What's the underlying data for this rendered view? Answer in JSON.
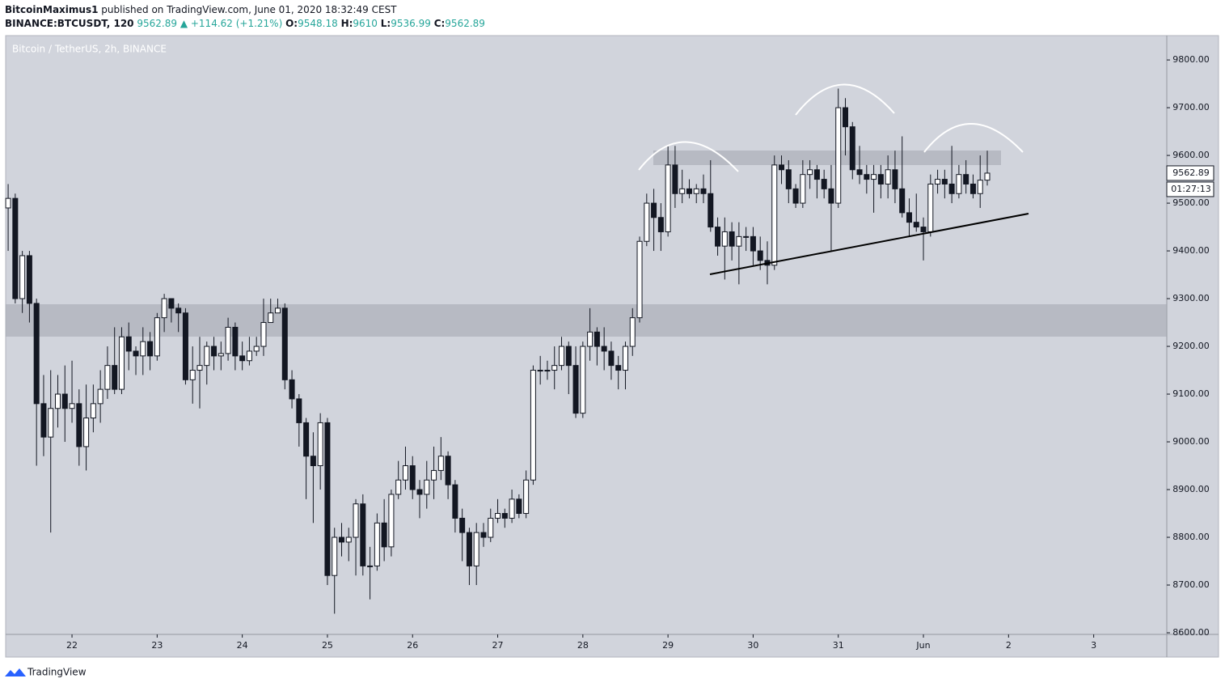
{
  "header": {
    "author": "BitcoinMaximus1",
    "published": "published on TradingView.com, June 01, 2020 18:32:49 CEST",
    "symbol": "BINANCE:BTCUSDT, 120",
    "change": "▲ +114.62 (+1.21%)",
    "o_label": "O:",
    "h_label": "H:",
    "l_label": "L:",
    "c_label": "C:"
  },
  "chart_data": {
    "type": "candlestick",
    "title": "Bitcoin / TetherUS, 2h, BINANCE",
    "countdown": "01:27:13",
    "x": [
      -18,
      -16,
      -14,
      -12,
      -10,
      -8,
      -6,
      -4,
      -2,
      0,
      2,
      4,
      6,
      8,
      10,
      12,
      14,
      16,
      18,
      20,
      22,
      24,
      26,
      28,
      30,
      32,
      34,
      36,
      38,
      40,
      42,
      44,
      46,
      48,
      50,
      52,
      54,
      56,
      58,
      60,
      62,
      64,
      66,
      68,
      70,
      72,
      74,
      76,
      78,
      80,
      82,
      84,
      86,
      88,
      90,
      92,
      94,
      96,
      98,
      100,
      102,
      104,
      106,
      108,
      110,
      112,
      114,
      116,
      118,
      120,
      122,
      124,
      126,
      128,
      130,
      132,
      134,
      136,
      138,
      140,
      142,
      144,
      146,
      148,
      150,
      152,
      154,
      156,
      158,
      160,
      162,
      164,
      166,
      168,
      170,
      172,
      174,
      176,
      178,
      180,
      182,
      184,
      186,
      188,
      190,
      192,
      194,
      196,
      198,
      200,
      202,
      204,
      206,
      208,
      210,
      212,
      214,
      216,
      218,
      220,
      222,
      224,
      226,
      228,
      230,
      232,
      234,
      236,
      238,
      240,
      242,
      244,
      246,
      248,
      250,
      252,
      254,
      256,
      258
    ],
    "open": [
      9490,
      9510,
      9300,
      9390,
      9290,
      9080,
      9010,
      9070,
      9100,
      9070,
      9080,
      8990,
      9050,
      9080,
      9110,
      9160,
      9110,
      9220,
      9190,
      9180,
      9210,
      9180,
      9260,
      9300,
      9280,
      9270,
      9130,
      9150,
      9160,
      9200,
      9180,
      9185,
      9240,
      9180,
      9170,
      9190,
      9200,
      9250,
      9270,
      9280,
      9130,
      9090,
      9040,
      8970,
      8950,
      9040,
      8720,
      8800,
      8790,
      8800,
      8870,
      8740,
      8740,
      8830,
      8780,
      8890,
      8920,
      8950,
      8900,
      8890,
      8920,
      8940,
      8970,
      8910,
      8840,
      8810,
      8740,
      8810,
      8800,
      8840,
      8850,
      8840,
      8880,
      8850,
      8920,
      9150,
      9150,
      9150,
      9160,
      9200,
      9160,
      9060,
      9200,
      9230,
      9200,
      9190,
      9160,
      9150,
      9200,
      9260,
      9420,
      9500,
      9470,
      9440,
      9580,
      9520,
      9530,
      9520,
      9530,
      9520,
      9450,
      9410,
      9440,
      9410,
      9430,
      9430,
      9400,
      9380,
      9370,
      9580,
      9570,
      9530,
      9500,
      9560,
      9570,
      9550,
      9530,
      9500,
      9700,
      9660,
      9570,
      9560,
      9550,
      9560,
      9540,
      9570,
      9530,
      9480,
      9460,
      9450,
      9440,
      9540,
      9550,
      9540,
      9520,
      9560,
      9540,
      9520,
      9548.18
    ],
    "high": [
      9540,
      9520,
      9400,
      9400,
      9300,
      9140,
      9150,
      9140,
      9160,
      9170,
      9110,
      9120,
      9120,
      9150,
      9200,
      9240,
      9240,
      9250,
      9200,
      9240,
      9230,
      9270,
      9310,
      9300,
      9290,
      9280,
      9200,
      9220,
      9210,
      9220,
      9210,
      9260,
      9250,
      9210,
      9220,
      9220,
      9300,
      9300,
      9300,
      9290,
      9150,
      9100,
      9050,
      9020,
      9060,
      9050,
      8820,
      8830,
      8820,
      8880,
      8890,
      8780,
      8850,
      8880,
      8900,
      8960,
      8990,
      8970,
      8920,
      8960,
      8990,
      9010,
      8980,
      8920,
      8860,
      8820,
      8830,
      8830,
      8860,
      8880,
      8860,
      8900,
      8890,
      8940,
      9160,
      9180,
      9170,
      9200,
      9220,
      9210,
      9200,
      9210,
      9280,
      9240,
      9240,
      9210,
      9180,
      9210,
      9280,
      9430,
      9520,
      9530,
      9500,
      9620,
      9620,
      9570,
      9550,
      9540,
      9560,
      9590,
      9470,
      9470,
      9460,
      9460,
      9450,
      9450,
      9430,
      9420,
      9600,
      9600,
      9590,
      9540,
      9590,
      9590,
      9580,
      9570,
      9580,
      9740,
      9720,
      9670,
      9620,
      9580,
      9580,
      9580,
      9600,
      9610,
      9640,
      9510,
      9520,
      9470,
      9560,
      9570,
      9570,
      9620,
      9580,
      9590,
      9560,
      9600,
      9610
    ],
    "low": [
      9400,
      9290,
      9270,
      9250,
      8950,
      8970,
      8810,
      9030,
      9000,
      9040,
      8950,
      8940,
      9020,
      9040,
      9090,
      9100,
      9100,
      9150,
      9140,
      9140,
      9150,
      9170,
      9230,
      9250,
      9230,
      9120,
      9080,
      9070,
      9120,
      9150,
      9150,
      9170,
      9150,
      9150,
      9160,
      9180,
      9180,
      9250,
      9270,
      9110,
      9070,
      8990,
      8880,
      8830,
      8900,
      8700,
      8640,
      8760,
      8750,
      8720,
      8720,
      8670,
      8730,
      8750,
      8760,
      8880,
      8900,
      8880,
      8840,
      8860,
      8880,
      8920,
      8880,
      8810,
      8750,
      8700,
      8700,
      8780,
      8790,
      8830,
      8820,
      8830,
      8840,
      8840,
      8910,
      9120,
      9130,
      9110,
      9150,
      9100,
      9050,
      9050,
      9170,
      9160,
      9150,
      9130,
      9110,
      9110,
      9180,
      9250,
      9410,
      9400,
      9400,
      9430,
      9490,
      9500,
      9510,
      9500,
      9500,
      9440,
      9390,
      9340,
      9380,
      9330,
      9400,
      9370,
      9360,
      9330,
      9360,
      9540,
      9500,
      9490,
      9490,
      9530,
      9510,
      9510,
      9400,
      9490,
      9600,
      9550,
      9540,
      9520,
      9480,
      9510,
      9510,
      9500,
      9470,
      9430,
      9440,
      9380,
      9430,
      9520,
      9510,
      9500,
      9510,
      9520,
      9510,
      9490,
      9536.99
    ],
    "close": [
      9510,
      9300,
      9390,
      9290,
      9080,
      9010,
      9070,
      9100,
      9070,
      9080,
      8990,
      9050,
      9080,
      9110,
      9160,
      9110,
      9220,
      9190,
      9180,
      9210,
      9180,
      9260,
      9300,
      9280,
      9270,
      9130,
      9150,
      9160,
      9200,
      9180,
      9185,
      9240,
      9180,
      9170,
      9190,
      9200,
      9250,
      9270,
      9280,
      9130,
      9090,
      9040,
      8970,
      8950,
      9040,
      8720,
      8800,
      8790,
      8800,
      8870,
      8740,
      8740,
      8830,
      8780,
      8890,
      8920,
      8950,
      8900,
      8890,
      8920,
      8940,
      8970,
      8910,
      8840,
      8810,
      8740,
      8810,
      8800,
      8840,
      8850,
      8840,
      8880,
      8850,
      8920,
      9150,
      9150,
      9150,
      9160,
      9200,
      9160,
      9060,
      9200,
      9230,
      9200,
      9190,
      9160,
      9150,
      9200,
      9260,
      9420,
      9500,
      9470,
      9440,
      9580,
      9520,
      9530,
      9520,
      9530,
      9520,
      9450,
      9410,
      9440,
      9410,
      9430,
      9430,
      9400,
      9380,
      9370,
      9580,
      9570,
      9530,
      9500,
      9560,
      9570,
      9550,
      9530,
      9500,
      9700,
      9660,
      9570,
      9560,
      9550,
      9560,
      9540,
      9570,
      9530,
      9480,
      9460,
      9450,
      9440,
      9540,
      9550,
      9540,
      9520,
      9560,
      9540,
      9520,
      9548.18,
      9562.89
    ],
    "xlim": [
      -18.7,
      308.6
    ],
    "xticks": [
      {
        "value": 0,
        "label": "22"
      },
      {
        "value": 24,
        "label": "23"
      },
      {
        "value": 48,
        "label": "24"
      },
      {
        "value": 72,
        "label": "25"
      },
      {
        "value": 96,
        "label": "26"
      },
      {
        "value": 120,
        "label": "27"
      },
      {
        "value": 144,
        "label": "28"
      },
      {
        "value": 168,
        "label": "29"
      },
      {
        "value": 192,
        "label": "30"
      },
      {
        "value": 216,
        "label": "31"
      },
      {
        "value": 240,
        "label": "Jun"
      },
      {
        "value": 264,
        "label": "2"
      },
      {
        "value": 288,
        "label": "3"
      }
    ],
    "ylim": [
      8600,
      9851
    ],
    "yticks": [
      {
        "value": 8600,
        "label": "8600.00"
      },
      {
        "value": 8700,
        "label": "8700.00"
      },
      {
        "value": 8800,
        "label": "8800.00"
      },
      {
        "value": 8900,
        "label": "8900.00"
      },
      {
        "value": 9000,
        "label": "9000.00"
      },
      {
        "value": 9100,
        "label": "9100.00"
      },
      {
        "value": 9200,
        "label": "9200.00"
      },
      {
        "value": 9300,
        "label": "9300.00"
      },
      {
        "value": 9400,
        "label": "9400.00"
      },
      {
        "value": 9500,
        "label": "9500.00"
      },
      {
        "value": 9600,
        "label": "9600.00"
      },
      {
        "value": 9700,
        "label": "9700.00"
      },
      {
        "value": 9800,
        "label": "9800.00"
      }
    ],
    "up_color": "#ffffff",
    "down_color": "#131722"
  },
  "footer": {
    "brand": "TradingView"
  }
}
